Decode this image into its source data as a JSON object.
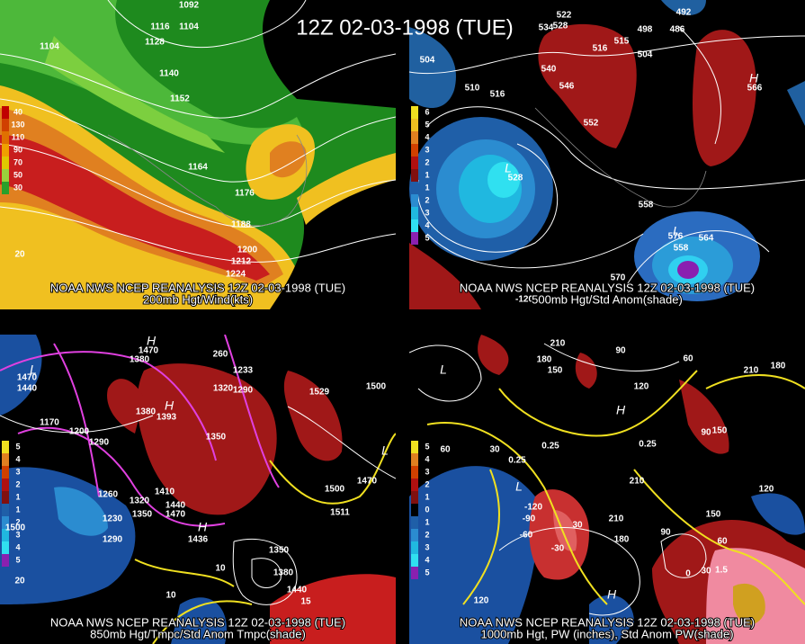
{
  "title": "12Z 02-03-1998 (TUE)",
  "panels": [
    {
      "caption": "NOAA NWS NCEP REANALYSIS 12Z 02-03-1998 (TUE)",
      "subtitle": "200mb Hgt/Wind(kts)",
      "colorbar": [
        "40",
        "130",
        "110",
        "90",
        "70",
        "50",
        "30"
      ],
      "labels": [
        "1092",
        "1116",
        "1104",
        "1128",
        "1104",
        "1140",
        "1152",
        "1164",
        "1176",
        "1188",
        "1200",
        "1212",
        "1224",
        "20"
      ]
    },
    {
      "caption": "NOAA NWS NCEP REANALYSIS 12Z 02-03-1998 (TUE)",
      "subtitle": "500mb Hgt/Std Anom(shade)",
      "colorbar": [
        "6",
        "5",
        "4",
        "3",
        "2",
        "1",
        "1",
        "2",
        "3",
        "4",
        "5"
      ],
      "labels": [
        "492",
        "486",
        "522",
        "528",
        "534",
        "516",
        "515",
        "498",
        "504",
        "504",
        "510",
        "516",
        "540",
        "546",
        "552",
        "566",
        "558",
        "576",
        "558",
        "564",
        "570",
        "528",
        "L",
        "L",
        "H",
        "-120"
      ]
    },
    {
      "caption": "NOAA NWS NCEP REANALYSIS 12Z 02-03-1998 (TUE)",
      "subtitle": "850mb Hgt/Tmpc/Std Anom Tmpc(shade)",
      "colorbar": [
        "5",
        "4",
        "3",
        "2",
        "1",
        "1",
        "2",
        "3",
        "4",
        "5"
      ],
      "labels": [
        "1470",
        "1380",
        "260",
        "1233",
        "1320",
        "1290",
        "1529",
        "1500",
        "1380",
        "1393",
        "1350",
        "1470",
        "1440",
        "1170",
        "1200",
        "1290",
        "1260",
        "1230",
        "1290",
        "1320",
        "1350",
        "1410",
        "1440",
        "1470",
        "1436",
        "1500",
        "1470",
        "1500",
        "1511",
        "1350",
        "1380",
        "1440",
        "10",
        "10",
        "20",
        "15",
        "H",
        "H",
        "L",
        "L",
        "H"
      ]
    },
    {
      "caption": "NOAA NWS NCEP REANALYSIS 12Z 02-03-1998 (TUE)",
      "subtitle": "1000mb Hgt, PW (inches), Std Anom PW(shade)",
      "colorbar": [
        "5",
        "4",
        "3",
        "2",
        "1",
        "0",
        "1",
        "2",
        "3",
        "4",
        "5"
      ],
      "labels": [
        "210",
        "90",
        "60",
        "180",
        "150",
        "120",
        "180",
        "210",
        "0.25",
        "0.25",
        "0.25",
        "60",
        "30",
        "90",
        "150",
        "210",
        "-120",
        "-90",
        "-60",
        "-30",
        "30",
        "210",
        "180",
        "150",
        "120",
        "90",
        "0",
        "30",
        "60",
        "120",
        "1.5",
        "L",
        "H",
        "L",
        "H"
      ]
    }
  ]
}
